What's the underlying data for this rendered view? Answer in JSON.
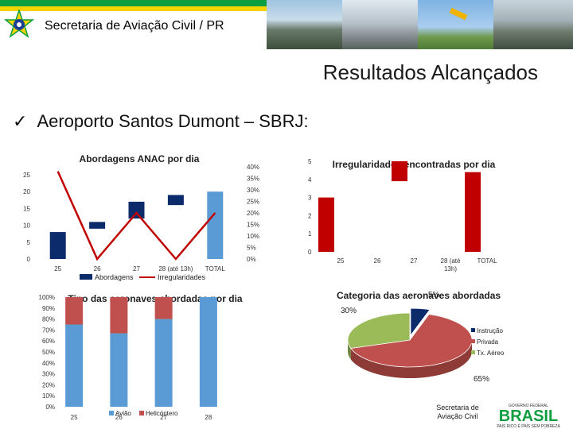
{
  "header": {
    "title": "Secretaria de Aviação Civil / PR"
  },
  "page": {
    "section_title": "Resultados Alcançados",
    "bullet": "Aeroporto Santos Dumont – SBRJ:",
    "bullet_icon": "checkmark-icon"
  },
  "footer": {
    "secretaria_line1": "Secretaria de",
    "secretaria_line2": "Aviação Civil",
    "brand": "BRASIL",
    "brand_top": "GOVERNO FEDERAL",
    "brand_bottom": "PAÍS RICO É PAÍS SEM POBREZA"
  },
  "colors": {
    "navy": "#0c2b6b",
    "red": "#c00000",
    "blue": "#5b9bd5",
    "dark_red": "#c0504d",
    "green": "#9bbb59"
  },
  "chart_data": [
    {
      "type": "bar",
      "title": "Abordagens ANAC por dia",
      "categories": [
        "25",
        "26",
        "27",
        "28 (até 13h)",
        "TOTAL"
      ],
      "y_ticks": [
        "0",
        "5",
        "10",
        "15",
        "20",
        "25"
      ],
      "ylim": [
        0,
        25
      ],
      "y2_ticks": [
        "0%",
        "5%",
        "10%",
        "15%",
        "20%",
        "25%",
        "30%",
        "35%",
        "40%"
      ],
      "y2lim": [
        0,
        0.4
      ],
      "series": [
        {
          "name": "Abordagens",
          "type": "floating-bar",
          "values": [
            [
              0,
              8
            ],
            [
              9,
              11
            ],
            [
              12,
              17
            ],
            [
              16,
              19
            ],
            [
              0,
              20
            ]
          ]
        },
        {
          "name": "Irregularidades",
          "type": "line",
          "values": [
            0.38,
            0.0,
            0.2,
            0.0,
            0.2
          ]
        }
      ]
    },
    {
      "type": "bar",
      "title": "Irregularidades encontradas por dia",
      "categories": [
        "25",
        "26",
        "27",
        "28 (até 13h)",
        "TOTAL"
      ],
      "y_ticks": [
        "0",
        "1",
        "2",
        "3",
        "4",
        "5"
      ],
      "ylim": [
        0,
        5
      ],
      "series": [
        {
          "name": "",
          "values": [
            [
              0,
              3
            ],
            [
              0,
              0
            ],
            [
              3.9,
              5
            ],
            [
              0,
              0
            ],
            [
              0,
              4.4
            ]
          ]
        }
      ]
    },
    {
      "type": "bar",
      "title": "Tipo das aeronaves abordadas por dia",
      "categories": [
        "25",
        "26",
        "27",
        "28"
      ],
      "y_ticks": [
        "0%",
        "10%",
        "20%",
        "30%",
        "40%",
        "50%",
        "60%",
        "70%",
        "80%",
        "90%",
        "100%"
      ],
      "ylim": [
        0,
        1
      ],
      "series": [
        {
          "name": "Avião",
          "values": [
            0.75,
            0.67,
            0.8,
            1.0
          ]
        },
        {
          "name": "Helicóptero",
          "values": [
            0.25,
            0.33,
            0.2,
            0.0
          ]
        }
      ]
    },
    {
      "type": "pie",
      "title": "Categoria das aeronaves abordadas",
      "labels": [
        "Instrução",
        "Privada",
        "Tx. Aéreo"
      ],
      "values": [
        0.05,
        0.65,
        0.3
      ],
      "data_labels": [
        "5%",
        "65%",
        "30%"
      ]
    }
  ]
}
